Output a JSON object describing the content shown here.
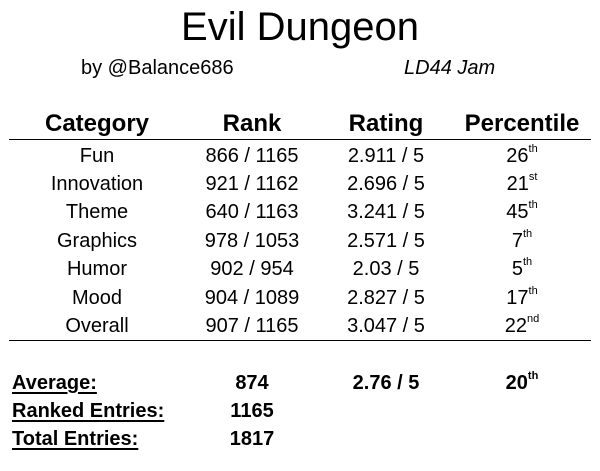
{
  "game": {
    "title": "Evil Dungeon",
    "author": "by @Balance686",
    "jam": "LD44 Jam"
  },
  "table": {
    "headers": [
      "Category",
      "Rank",
      "Rating",
      "Percentile"
    ],
    "rows": [
      {
        "category": "Fun",
        "rank": "866 / 1165",
        "rating": "2.911 / 5",
        "pct": "26",
        "suffix": "th"
      },
      {
        "category": "Innovation",
        "rank": "921 / 1162",
        "rating": "2.696 / 5",
        "pct": "21",
        "suffix": "st"
      },
      {
        "category": "Theme",
        "rank": "640 / 1163",
        "rating": "3.241 / 5",
        "pct": "45",
        "suffix": "th"
      },
      {
        "category": "Graphics",
        "rank": "978 / 1053",
        "rating": "2.571 / 5",
        "pct": "7",
        "suffix": "th"
      },
      {
        "category": "Humor",
        "rank": "902 / 954",
        "rating": "2.03 / 5",
        "pct": "5",
        "suffix": "th"
      },
      {
        "category": "Mood",
        "rank": "904 / 1089",
        "rating": "2.827 / 5",
        "pct": "17",
        "suffix": "th"
      },
      {
        "category": "Overall",
        "rank": "907 / 1165",
        "rating": "3.047 / 5",
        "pct": "22",
        "suffix": "nd"
      }
    ]
  },
  "summary": {
    "average_label": "Average:",
    "average_rank": "874",
    "average_rating": "2.76 / 5",
    "average_pct": "20",
    "average_suffix": "th",
    "ranked_label": "Ranked Entries:",
    "ranked_value": "1165",
    "total_label": "Total Entries:",
    "total_value": "1817"
  }
}
